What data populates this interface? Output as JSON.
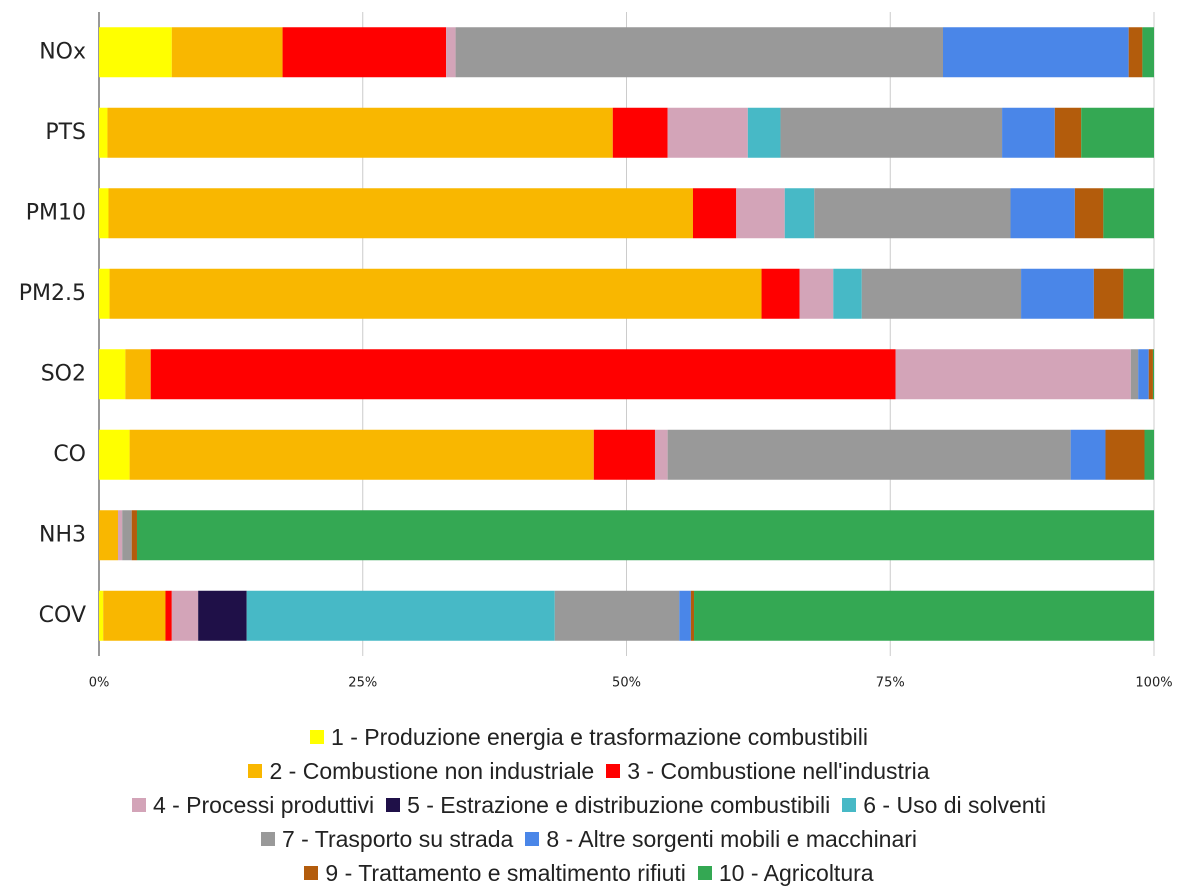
{
  "chart_data": {
    "type": "stacked-bar-horizontal",
    "categories": [
      "NOx",
      "PTS",
      "PM10",
      "PM2.5",
      "SO2",
      "CO",
      "NH3",
      "COV"
    ],
    "series": [
      {
        "name": "1 - Produzione energia e trasformazione combustibili",
        "color": "#ffff00",
        "values": [
          6.9,
          0.8,
          0.9,
          1.0,
          2.5,
          2.9,
          0,
          0.4
        ]
      },
      {
        "name": "2 - Combustione non industriale",
        "color": "#f9b700",
        "values": [
          10.5,
          47.9,
          55.4,
          61.8,
          2.4,
          44.0,
          1.8,
          5.9
        ]
      },
      {
        "name": "3 - Combustione nell'industria",
        "color": "#ff0000",
        "values": [
          15.5,
          5.2,
          4.1,
          3.6,
          70.6,
          5.8,
          0,
          0.6
        ]
      },
      {
        "name": "4 - Processi produttivi",
        "color": "#d3a4b8",
        "values": [
          0.9,
          7.6,
          4.6,
          3.2,
          22.3,
          1.2,
          0.4,
          2.5
        ]
      },
      {
        "name": "5 - Estrazione e distribuzione combustibili",
        "color": "#1f1048",
        "values": [
          0,
          0,
          0,
          0,
          0,
          0,
          0,
          4.6
        ]
      },
      {
        "name": "6 - Uso di solventi",
        "color": "#47b9c6",
        "values": [
          0,
          3.1,
          2.8,
          2.7,
          0,
          0,
          0,
          29.2
        ]
      },
      {
        "name": "7 - Trasporto su strada",
        "color": "#999999",
        "values": [
          46.2,
          21.0,
          18.6,
          15.1,
          0.7,
          38.2,
          0.9,
          11.8
        ]
      },
      {
        "name": "8 - Altre sorgenti mobili e macchinari",
        "color": "#4a86e8",
        "values": [
          17.6,
          5.0,
          6.1,
          6.9,
          1.0,
          3.3,
          0,
          1.1
        ]
      },
      {
        "name": "9 - Trattamento e smaltimento rifiuti",
        "color": "#b35c0c",
        "values": [
          1.3,
          2.5,
          2.7,
          2.8,
          0.4,
          3.7,
          0.5,
          0.3
        ]
      },
      {
        "name": "10 - Agricoltura",
        "color": "#34a853",
        "values": [
          1.1,
          6.9,
          4.8,
          2.9,
          0.1,
          0.9,
          96.4,
          43.6
        ]
      }
    ],
    "xlim": [
      0,
      100
    ],
    "xticks": [
      {
        "value": 0,
        "label": "0%"
      },
      {
        "value": 25,
        "label": "25%"
      },
      {
        "value": 50,
        "label": "50%"
      },
      {
        "value": 75,
        "label": "75%"
      },
      {
        "value": 100,
        "label": "100%"
      }
    ],
    "grid": true,
    "legend": "bottom"
  }
}
